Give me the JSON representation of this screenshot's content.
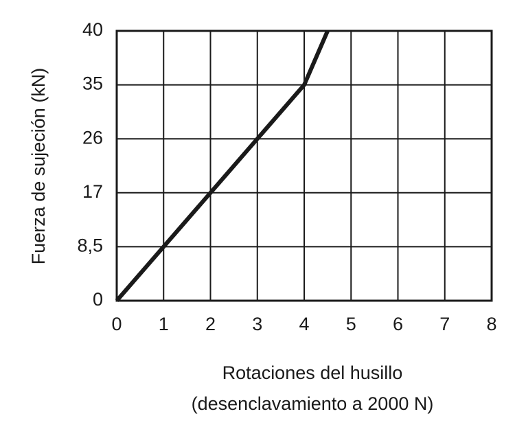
{
  "chart_data": {
    "type": "line",
    "ylabel": "Fuerza de sujeción (kN)",
    "xlabel": [
      "Rotaciones del husillo",
      "(desenclavamiento a 2000 N)"
    ],
    "x": [
      0,
      1,
      2,
      3,
      4,
      4.5
    ],
    "series": [
      {
        "name": "Fuerza",
        "color": "#1a1a1a",
        "values": [
          0,
          8.5,
          17,
          26,
          35,
          40
        ]
      }
    ],
    "xlim": [
      0,
      8
    ],
    "xticks": [
      0,
      1,
      2,
      3,
      4,
      5,
      6,
      7,
      8
    ],
    "ylim": [
      0,
      40
    ],
    "yticks": [
      0,
      {
        "value": 8.5,
        "label": "8,5"
      },
      17,
      26,
      35,
      40
    ],
    "grid": true
  }
}
